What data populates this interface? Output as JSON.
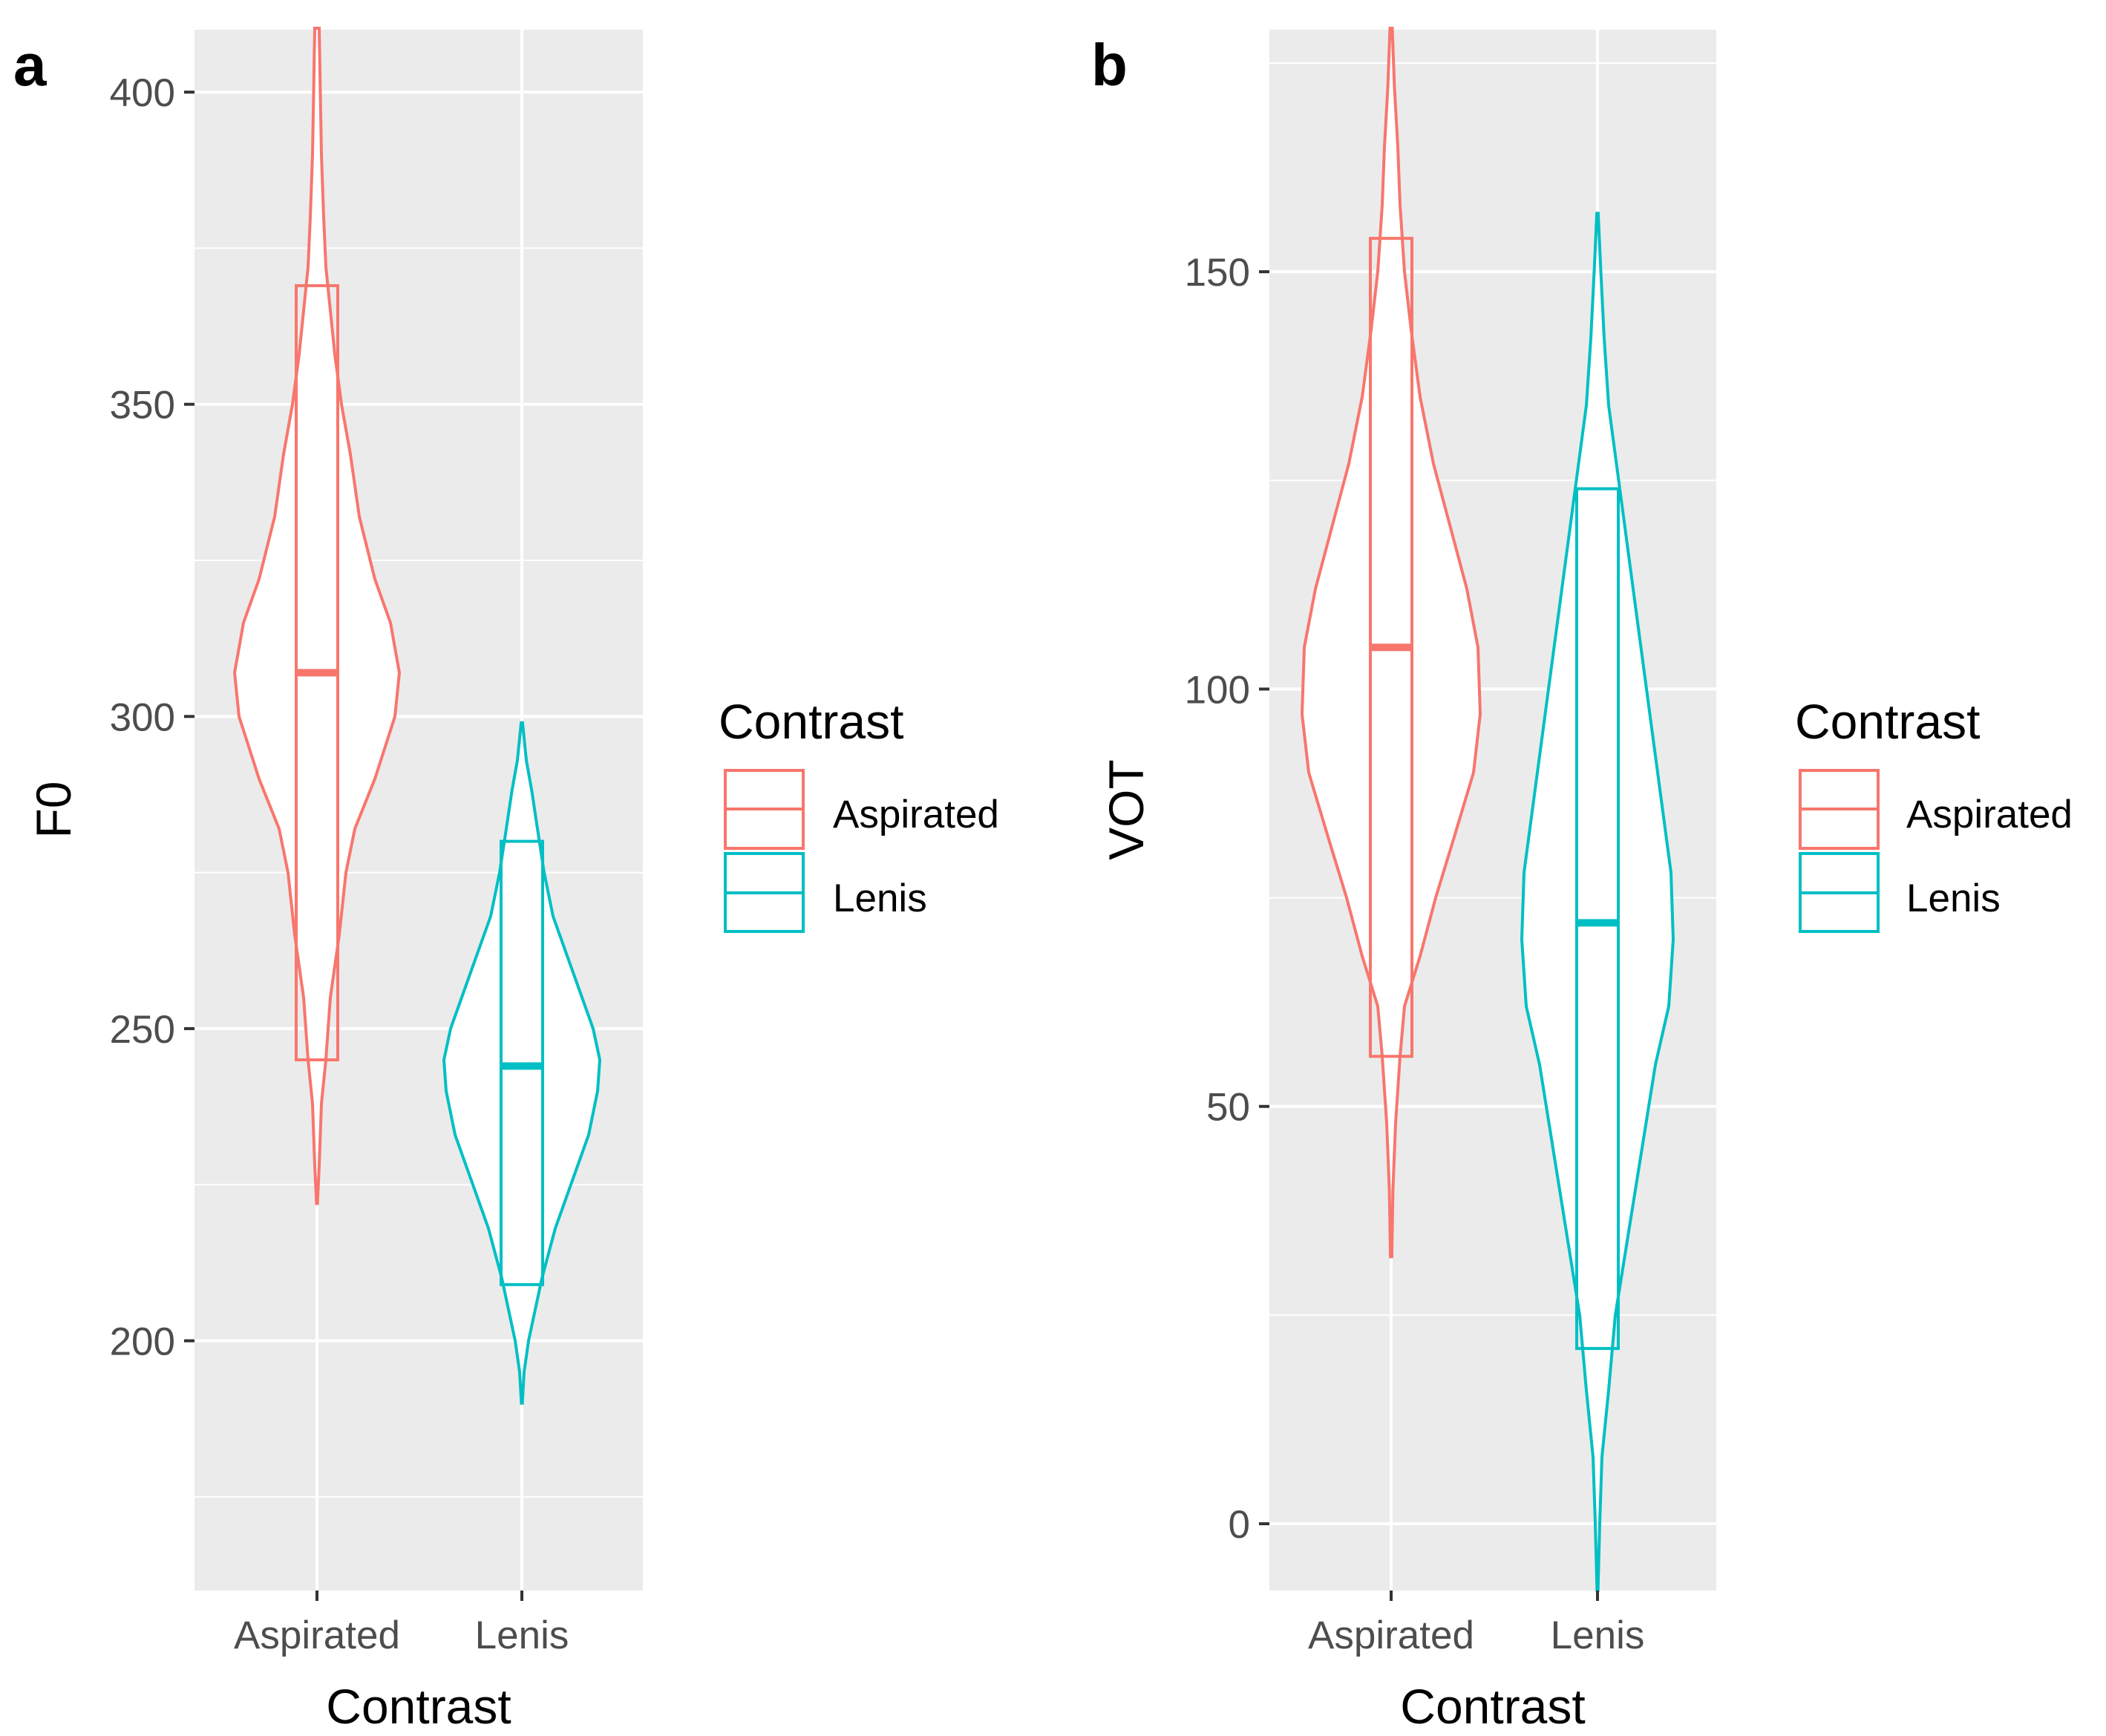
{
  "legend": {
    "title": "Contrast",
    "entries": [
      {
        "label": "Aspirated",
        "color": "#F8766D"
      },
      {
        "label": "Lenis",
        "color": "#00BFC4"
      }
    ]
  },
  "chart_data": [
    {
      "panel": "a",
      "type": "violin",
      "xlabel": "Contrast",
      "ylabel": "F0",
      "categories": [
        "Aspirated",
        "Lenis"
      ],
      "ylim": [
        160,
        410
      ],
      "y_ticks": [
        200,
        250,
        300,
        350,
        400
      ],
      "y_minor": [
        175,
        225,
        275,
        325,
        375
      ],
      "grid": true,
      "series": [
        {
          "name": "Aspirated",
          "color": "#F8766D",
          "box": {
            "q1": 245,
            "median": 307,
            "q3": 369
          },
          "violin": [
            [
              222,
              0.002
            ],
            [
              228,
              0.01
            ],
            [
              238,
              0.02
            ],
            [
              245,
              0.04
            ],
            [
              255,
              0.06
            ],
            [
              265,
              0.1
            ],
            [
              275,
              0.13
            ],
            [
              282,
              0.17
            ],
            [
              290,
              0.26
            ],
            [
              300,
              0.35
            ],
            [
              307,
              0.37
            ],
            [
              315,
              0.33
            ],
            [
              322,
              0.26
            ],
            [
              332,
              0.19
            ],
            [
              342,
              0.15
            ],
            [
              350,
              0.11
            ],
            [
              358,
              0.08
            ],
            [
              365,
              0.06
            ],
            [
              372,
              0.04
            ],
            [
              380,
              0.03
            ],
            [
              390,
              0.02
            ],
            [
              400,
              0.015
            ],
            [
              412,
              0.01
            ]
          ]
        },
        {
          "name": "Lenis",
          "color": "#00BFC4",
          "box": {
            "q1": 209,
            "median": 244,
            "q3": 280
          },
          "violin": [
            [
              190,
              0.002
            ],
            [
              195,
              0.01
            ],
            [
              200,
              0.03
            ],
            [
              205,
              0.06
            ],
            [
              210,
              0.09
            ],
            [
              218,
              0.15
            ],
            [
              225,
              0.22
            ],
            [
              233,
              0.3
            ],
            [
              240,
              0.34
            ],
            [
              245,
              0.35
            ],
            [
              250,
              0.32
            ],
            [
              256,
              0.26
            ],
            [
              262,
              0.2
            ],
            [
              268,
              0.14
            ],
            [
              275,
              0.1
            ],
            [
              282,
              0.07
            ],
            [
              288,
              0.045
            ],
            [
              293,
              0.02
            ],
            [
              299,
              0.003
            ]
          ]
        }
      ]
    },
    {
      "panel": "b",
      "type": "violin",
      "xlabel": "Contrast",
      "ylabel": "VOT",
      "categories": [
        "Aspirated",
        "Lenis"
      ],
      "ylim": [
        -8,
        179
      ],
      "y_ticks": [
        0,
        50,
        100,
        150
      ],
      "y_minor": [
        25,
        75,
        125,
        175
      ],
      "grid": true,
      "series": [
        {
          "name": "Aspirated",
          "color": "#F8766D",
          "box": {
            "q1": 56,
            "median": 105,
            "q3": 154
          },
          "violin": [
            [
              32,
              0.003
            ],
            [
              40,
              0.008
            ],
            [
              48,
              0.02
            ],
            [
              56,
              0.04
            ],
            [
              62,
              0.06
            ],
            [
              68,
              0.13
            ],
            [
              75,
              0.2
            ],
            [
              82,
              0.28
            ],
            [
              90,
              0.37
            ],
            [
              97,
              0.4
            ],
            [
              105,
              0.39
            ],
            [
              112,
              0.34
            ],
            [
              120,
              0.26
            ],
            [
              127,
              0.19
            ],
            [
              135,
              0.13
            ],
            [
              143,
              0.09
            ],
            [
              150,
              0.06
            ],
            [
              158,
              0.04
            ],
            [
              165,
              0.03
            ],
            [
              172,
              0.015
            ],
            [
              180,
              0.005
            ]
          ]
        },
        {
          "name": "Lenis",
          "color": "#00BFC4",
          "box": {
            "q1": 21,
            "median": 72,
            "q3": 124
          },
          "violin": [
            [
              -8,
              0.002
            ],
            [
              0,
              0.01
            ],
            [
              8,
              0.02
            ],
            [
              16,
              0.05
            ],
            [
              25,
              0.08
            ],
            [
              35,
              0.14
            ],
            [
              45,
              0.2
            ],
            [
              55,
              0.26
            ],
            [
              62,
              0.32
            ],
            [
              70,
              0.34
            ],
            [
              78,
              0.33
            ],
            [
              88,
              0.28
            ],
            [
              98,
              0.23
            ],
            [
              108,
              0.18
            ],
            [
              118,
              0.13
            ],
            [
              126,
              0.09
            ],
            [
              134,
              0.05
            ],
            [
              142,
              0.03
            ],
            [
              150,
              0.015
            ],
            [
              157,
              0.003
            ]
          ]
        }
      ]
    }
  ]
}
